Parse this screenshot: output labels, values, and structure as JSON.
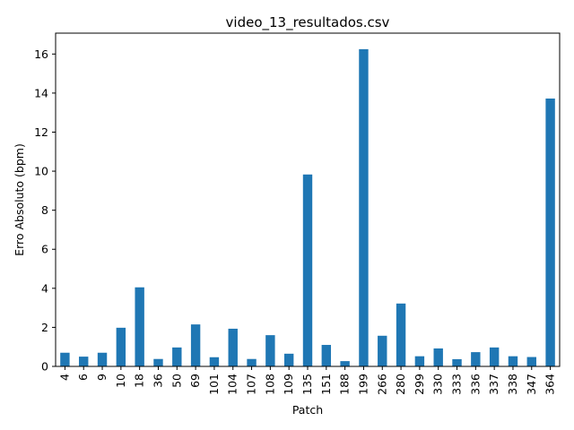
{
  "chart_data": {
    "type": "bar",
    "title": "video_13_resultados.csv",
    "xlabel": "Patch",
    "ylabel": "Erro Absoluto (bpm)",
    "categories": [
      "4",
      "6",
      "9",
      "10",
      "18",
      "36",
      "50",
      "69",
      "101",
      "104",
      "107",
      "108",
      "109",
      "135",
      "151",
      "188",
      "199",
      "266",
      "280",
      "299",
      "330",
      "333",
      "336",
      "337",
      "338",
      "347",
      "364"
    ],
    "values": [
      0.7,
      0.5,
      0.7,
      1.98,
      4.05,
      0.38,
      0.97,
      2.15,
      0.47,
      1.93,
      0.38,
      1.6,
      0.65,
      9.83,
      1.1,
      0.27,
      16.25,
      1.57,
      3.22,
      0.52,
      0.92,
      0.37,
      0.73,
      0.97,
      0.52,
      0.48,
      13.72
    ],
    "ylim": [
      0,
      17.07
    ],
    "yticks": [
      0,
      2,
      4,
      6,
      8,
      10,
      12,
      14,
      16
    ],
    "bar_color": "#1f77b4",
    "grid": false,
    "legend": "none"
  }
}
